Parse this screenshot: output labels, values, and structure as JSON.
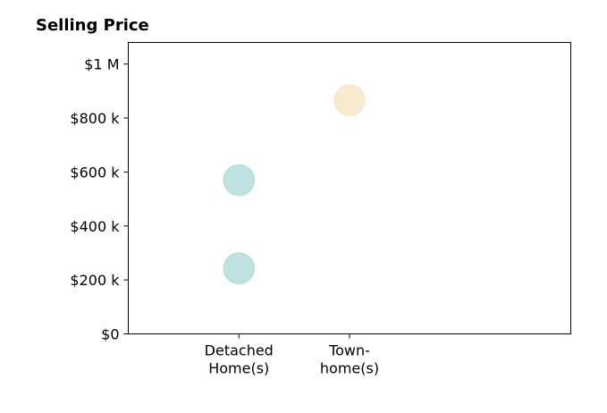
{
  "chart_data": {
    "type": "scatter",
    "title": "Selling Price",
    "xlabel": "",
    "ylabel": "",
    "categories": [
      "Detached\nHome(s)",
      "Town-\nhome(s)"
    ],
    "yticks": [
      0,
      200000,
      400000,
      600000,
      800000,
      1000000
    ],
    "ytick_labels": [
      "$0",
      "$200 k",
      "$400 k",
      "$600 k",
      "$800 k",
      "$1 M"
    ],
    "ylim": [
      0,
      1080000
    ],
    "grid": false,
    "points": [
      {
        "category": 0,
        "y": 570000,
        "color": "#b3dedb"
      },
      {
        "category": 0,
        "y": 243000,
        "color": "#b3dedb"
      },
      {
        "category": 1,
        "y": 866000,
        "color": "#f7e7c6"
      }
    ]
  }
}
